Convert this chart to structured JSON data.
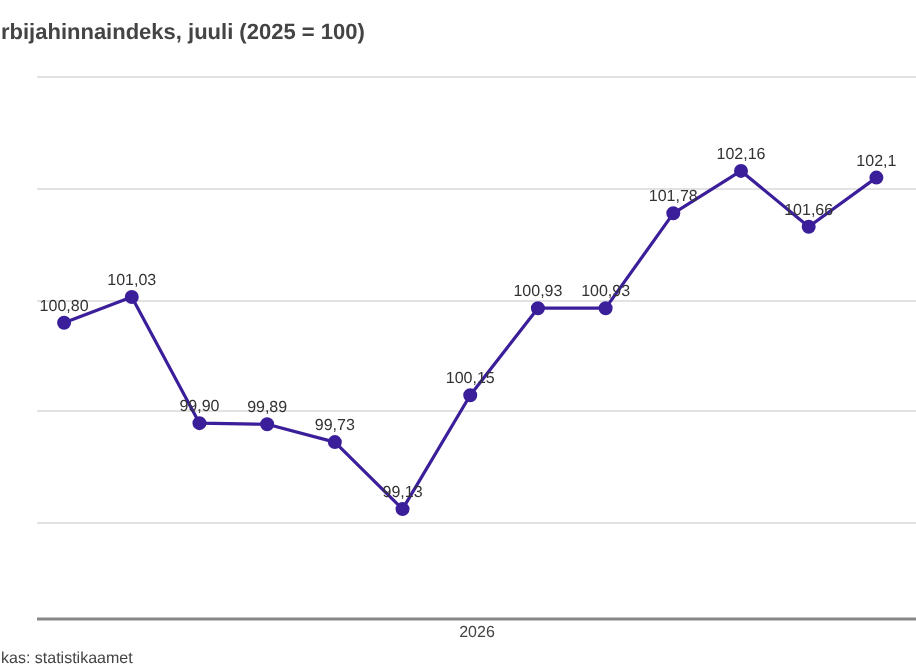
{
  "chart_data": {
    "type": "line",
    "title": "rbijahinnaindeks, juuli (2025 = 100)",
    "categories": [
      null,
      null,
      null,
      null,
      null,
      null,
      null,
      null,
      null,
      null,
      null,
      null,
      null
    ],
    "series": [
      {
        "color": "#3b1f9a",
        "values": [
          100.8,
          101.03,
          99.9,
          99.89,
          99.73,
          99.13,
          100.15,
          100.93,
          100.93,
          101.78,
          102.16,
          101.66,
          102.1
        ],
        "value_labels": [
          "100,80",
          "101,03",
          "99,90",
          "99,89",
          "99,73",
          "99,13",
          "100,15",
          "100,93",
          "100,93",
          "101,78",
          "102,16",
          "101,66",
          "102,1"
        ]
      }
    ],
    "tick_labels": false,
    "grid": "y",
    "marker": "circle",
    "line_style": "solid",
    "annotations": [
      "2026",
      "kas: statistikaamet"
    ]
  }
}
